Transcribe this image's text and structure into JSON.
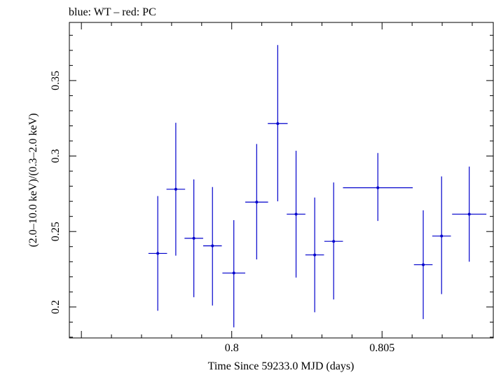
{
  "chart_data": {
    "type": "scatter",
    "title": "blue: WT – red: PC",
    "xlabel": "Time Since 59233.0 MJD (days)",
    "ylabel": "(2.0–10.0 keV)/(0.3–2.0 keV)",
    "xlim": [
      0.7946,
      0.8087
    ],
    "ylim": [
      0.1795,
      0.3885
    ],
    "x_ticks": [
      {
        "value": 0.8,
        "label": "0.8"
      },
      {
        "value": 0.805,
        "label": "0.805"
      }
    ],
    "y_ticks": [
      {
        "value": 0.2,
        "label": "0.2"
      },
      {
        "value": 0.25,
        "label": "0.25"
      },
      {
        "value": 0.3,
        "label": "0.3"
      },
      {
        "value": 0.35,
        "label": "0.35"
      }
    ],
    "grid": false,
    "series": [
      {
        "name": "WT",
        "color": "#0000cc",
        "points": [
          {
            "x": 0.79754,
            "y": 0.2355,
            "xerr": 0.00031,
            "ylo": 0.1975,
            "yhi": 0.2735
          },
          {
            "x": 0.79814,
            "y": 0.278,
            "xerr": 0.00031,
            "ylo": 0.234,
            "yhi": 0.322
          },
          {
            "x": 0.79874,
            "y": 0.2455,
            "xerr": 0.00031,
            "ylo": 0.2065,
            "yhi": 0.2845
          },
          {
            "x": 0.79936,
            "y": 0.2405,
            "xerr": 0.00031,
            "ylo": 0.201,
            "yhi": 0.2795
          },
          {
            "x": 0.80007,
            "y": 0.2225,
            "xerr": 0.00038,
            "ylo": 0.1865,
            "yhi": 0.2575
          },
          {
            "x": 0.80083,
            "y": 0.2695,
            "xerr": 0.00038,
            "ylo": 0.2315,
            "yhi": 0.308
          },
          {
            "x": 0.80153,
            "y": 0.3215,
            "xerr": 0.00033,
            "ylo": 0.27,
            "yhi": 0.3735
          },
          {
            "x": 0.80214,
            "y": 0.2615,
            "xerr": 0.00031,
            "ylo": 0.2195,
            "yhi": 0.3035
          },
          {
            "x": 0.80276,
            "y": 0.2345,
            "xerr": 0.00031,
            "ylo": 0.1965,
            "yhi": 0.2725
          },
          {
            "x": 0.80339,
            "y": 0.2435,
            "xerr": 0.00031,
            "ylo": 0.205,
            "yhi": 0.2825
          },
          {
            "x": 0.80486,
            "y": 0.279,
            "xerr": 0.00116,
            "ylo": 0.257,
            "yhi": 0.302
          },
          {
            "x": 0.80637,
            "y": 0.228,
            "xerr": 0.00031,
            "ylo": 0.192,
            "yhi": 0.264
          },
          {
            "x": 0.80698,
            "y": 0.247,
            "xerr": 0.00031,
            "ylo": 0.2085,
            "yhi": 0.2865
          },
          {
            "x": 0.8079,
            "y": 0.2615,
            "xerr": 0.00057,
            "ylo": 0.23,
            "yhi": 0.293
          }
        ]
      }
    ]
  }
}
